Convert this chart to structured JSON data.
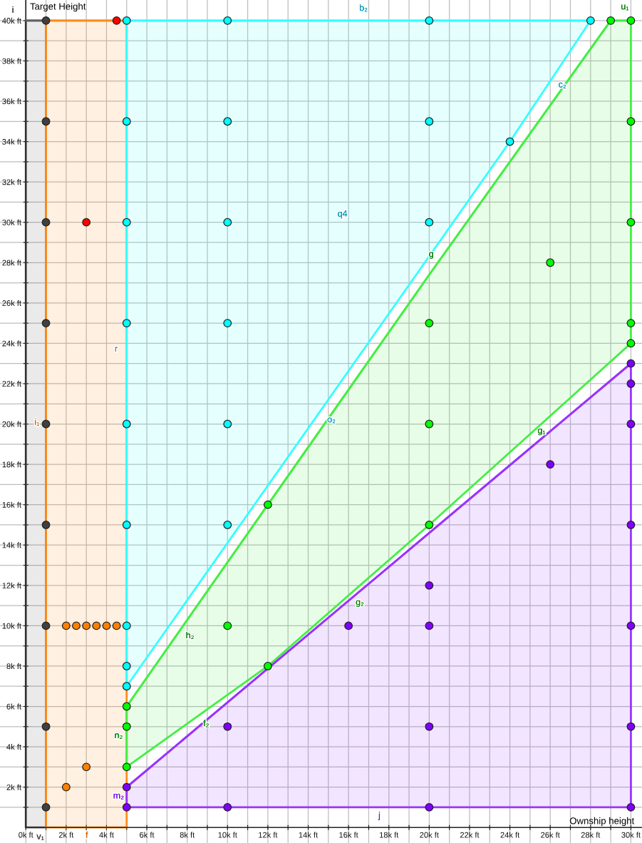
{
  "chart_data": {
    "type": "scatter",
    "xlabel": "Ownship height",
    "ylabel": "Target Height",
    "xlim": [
      -1.28,
      30.55
    ],
    "ylim": [
      -0.77,
      41.02
    ],
    "xticks": [
      {
        "value": 0,
        "label": "0k ft"
      },
      {
        "value": 1,
        "label": null
      },
      {
        "value": 2,
        "label": "2k ft"
      },
      {
        "value": 3,
        "label": null
      },
      {
        "value": 4,
        "label": "4k ft"
      },
      {
        "value": 5,
        "label": null
      },
      {
        "value": 6,
        "label": "6k ft"
      },
      {
        "value": 7,
        "label": null
      },
      {
        "value": 8,
        "label": "8k ft"
      },
      {
        "value": 9,
        "label": null
      },
      {
        "value": 10,
        "label": "10k ft"
      },
      {
        "value": 11,
        "label": null
      },
      {
        "value": 12,
        "label": "12k ft"
      },
      {
        "value": 13,
        "label": null
      },
      {
        "value": 14,
        "label": "14k ft"
      },
      {
        "value": 15,
        "label": null
      },
      {
        "value": 16,
        "label": "16k ft"
      },
      {
        "value": 17,
        "label": null
      },
      {
        "value": 18,
        "label": "18k ft"
      },
      {
        "value": 19,
        "label": null
      },
      {
        "value": 20,
        "label": "20k ft"
      },
      {
        "value": 21,
        "label": null
      },
      {
        "value": 22,
        "label": "22k ft"
      },
      {
        "value": 23,
        "label": null
      },
      {
        "value": 24,
        "label": "24k ft"
      },
      {
        "value": 25,
        "label": null
      },
      {
        "value": 26,
        "label": "26k ft"
      },
      {
        "value": 27,
        "label": null
      },
      {
        "value": 28,
        "label": "28k ft"
      },
      {
        "value": 29,
        "label": null
      },
      {
        "value": 30,
        "label": "30k ft"
      }
    ],
    "yticks": [
      {
        "value": 1,
        "label": null
      },
      {
        "value": 2,
        "label": "2k ft"
      },
      {
        "value": 3,
        "label": null
      },
      {
        "value": 4,
        "label": "4k ft"
      },
      {
        "value": 5,
        "label": null
      },
      {
        "value": 6,
        "label": "6k ft"
      },
      {
        "value": 7,
        "label": null
      },
      {
        "value": 8,
        "label": "8k ft"
      },
      {
        "value": 9,
        "label": null
      },
      {
        "value": 10,
        "label": "10k ft"
      },
      {
        "value": 11,
        "label": null
      },
      {
        "value": 12,
        "label": "12k ft"
      },
      {
        "value": 13,
        "label": null
      },
      {
        "value": 14,
        "label": "14k ft"
      },
      {
        "value": 15,
        "label": null
      },
      {
        "value": 16,
        "label": "16k ft"
      },
      {
        "value": 17,
        "label": null
      },
      {
        "value": 18,
        "label": "18k ft"
      },
      {
        "value": 19,
        "label": null
      },
      {
        "value": 20,
        "label": "20k ft"
      },
      {
        "value": 21,
        "label": null
      },
      {
        "value": 22,
        "label": "22k ft"
      },
      {
        "value": 23,
        "label": null
      },
      {
        "value": 24,
        "label": "24k ft"
      },
      {
        "value": 25,
        "label": null
      },
      {
        "value": 26,
        "label": "26k ft"
      },
      {
        "value": 27,
        "label": null
      },
      {
        "value": 28,
        "label": "28k ft"
      },
      {
        "value": 29,
        "label": null
      },
      {
        "value": 30,
        "label": "30k ft"
      },
      {
        "value": 31,
        "label": null
      },
      {
        "value": 32,
        "label": "32k ft"
      },
      {
        "value": 33,
        "label": null
      },
      {
        "value": 34,
        "label": "34k ft"
      },
      {
        "value": 35,
        "label": null
      },
      {
        "value": 36,
        "label": "36k ft"
      },
      {
        "value": 37,
        "label": null
      },
      {
        "value": 38,
        "label": "38k ft"
      },
      {
        "value": 39,
        "label": null
      },
      {
        "value": 40,
        "label": "40k ft"
      }
    ],
    "grid": true,
    "marker": "circle",
    "series": [
      {
        "type": "line",
        "marker": "none",
        "color": "#606060",
        "x": [
          0,
          1
        ],
        "values": [
          40,
          40
        ],
        "lower": [
          0,
          0
        ],
        "upper": [
          40,
          40
        ]
      },
      {
        "type": "line",
        "marker": "none",
        "color": "#ff8c1a",
        "x": [
          1,
          5
        ],
        "values": [
          40,
          40
        ],
        "lower": [
          0,
          0
        ],
        "upper": [
          40,
          40
        ]
      },
      {
        "type": "line",
        "marker": "none",
        "color": "#33ffff",
        "x": [
          5,
          24,
          28
        ],
        "values": [
          40,
          40,
          40
        ],
        "lower": [
          7,
          34,
          40
        ],
        "upper": [
          40,
          40,
          40
        ]
      },
      {
        "type": "line",
        "marker": "none",
        "color": "#44ee44",
        "x": [
          5,
          12,
          20,
          29,
          30
        ],
        "values": [
          6,
          16,
          27.4,
          40,
          40
        ],
        "lower": [
          3,
          8,
          15,
          23.1,
          24
        ],
        "upper": [
          6,
          16,
          27.4,
          40,
          40
        ]
      },
      {
        "type": "line",
        "marker": "none",
        "color": "#9933ff",
        "x": [
          5,
          30
        ],
        "values": [
          2,
          23
        ],
        "lower": [
          1,
          1
        ],
        "upper": [
          2,
          23
        ]
      },
      {
        "color": "#404040",
        "x": [
          1,
          1,
          1,
          1,
          1,
          1,
          1,
          1,
          1
        ],
        "values": [
          40,
          35,
          30,
          25,
          20,
          15,
          10,
          5,
          1
        ]
      },
      {
        "color": "#ff8000",
        "x": [
          2,
          2.5,
          3,
          3.5,
          4,
          4.5,
          2,
          3
        ],
        "values": [
          10,
          10,
          10,
          10,
          10,
          10,
          2,
          3
        ]
      },
      {
        "color": "#ff0000",
        "x": [
          4.5,
          3
        ],
        "values": [
          40,
          30
        ]
      },
      {
        "color": "#00ffff",
        "x": [
          5,
          5,
          5,
          5,
          5,
          5,
          5,
          5,
          5,
          10,
          10,
          10,
          10,
          10,
          10,
          20,
          20,
          20,
          24,
          28
        ],
        "values": [
          40,
          35,
          30,
          25,
          20,
          15,
          10,
          8,
          7,
          40,
          35,
          30,
          25,
          20,
          15,
          40,
          35,
          30,
          34,
          40
        ]
      },
      {
        "color": "#00ff00",
        "x": [
          5,
          5,
          5,
          10,
          12,
          12,
          20,
          20,
          20,
          26,
          29,
          30,
          30,
          30,
          30,
          30
        ],
        "values": [
          6,
          5,
          3,
          10,
          16,
          8,
          25,
          20,
          15,
          28,
          40,
          40,
          35,
          30,
          25,
          24
        ]
      },
      {
        "color": "#7f00ff",
        "x": [
          5,
          5,
          10,
          10,
          16,
          20,
          20,
          20,
          20,
          26,
          30,
          30,
          30,
          30,
          30,
          30,
          30
        ],
        "values": [
          2,
          1,
          5,
          1,
          10,
          12,
          10,
          5,
          1,
          18,
          23,
          22,
          20,
          15,
          10,
          5,
          1
        ]
      }
    ],
    "annotations": [
      "i",
      "b₂",
      "u₁",
      {
        "text": "c₂",
        "x": 26.6,
        "y": 36.8
      },
      "q4",
      {
        "text": "g",
        "x": 20.1,
        "y": 28.4
      },
      "r",
      "i₁",
      {
        "text": "o₂",
        "x": 15.15,
        "y": 20.2
      },
      "g₁",
      "g₂",
      "h₂",
      {
        "text": "f₂",
        "x": 8.94,
        "y": 5.13
      },
      "n₂",
      "m₂",
      "j",
      "v₁",
      "f"
    ]
  }
}
